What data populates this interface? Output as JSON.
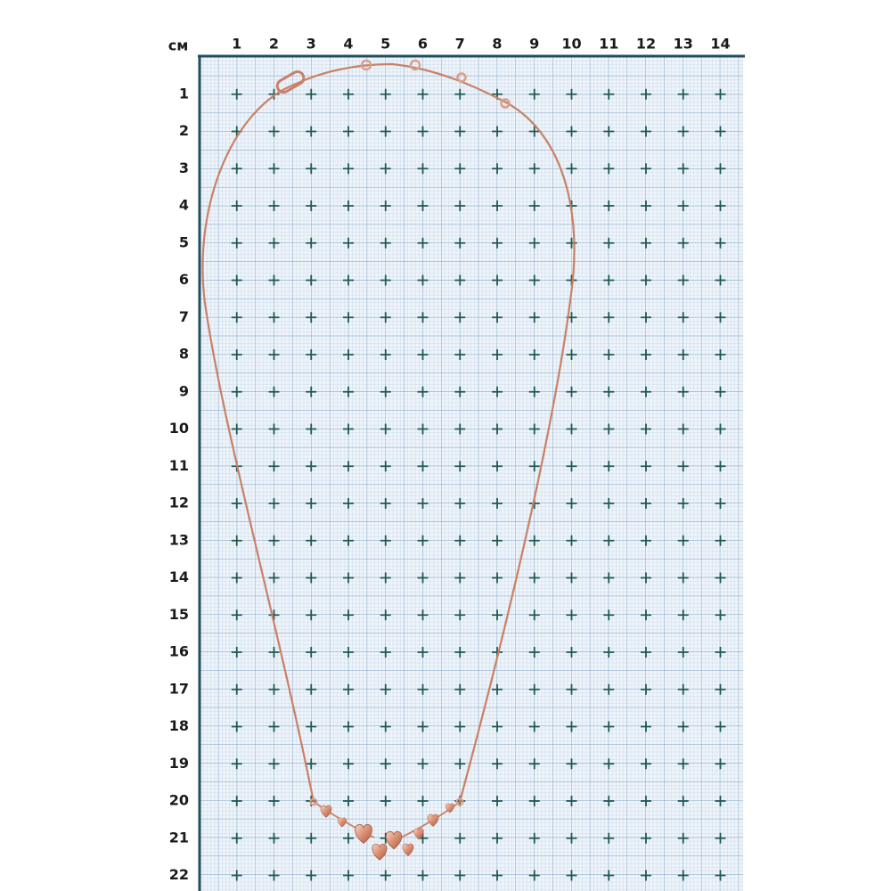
{
  "unit": "см",
  "columns": [
    1,
    2,
    3,
    4,
    5,
    6,
    7,
    8,
    9,
    10,
    11,
    12,
    13,
    14
  ],
  "rows": [
    1,
    2,
    3,
    4,
    5,
    6,
    7,
    8,
    9,
    10,
    11,
    12,
    13,
    14,
    15,
    16,
    17,
    18,
    19,
    20,
    21,
    22
  ]
}
